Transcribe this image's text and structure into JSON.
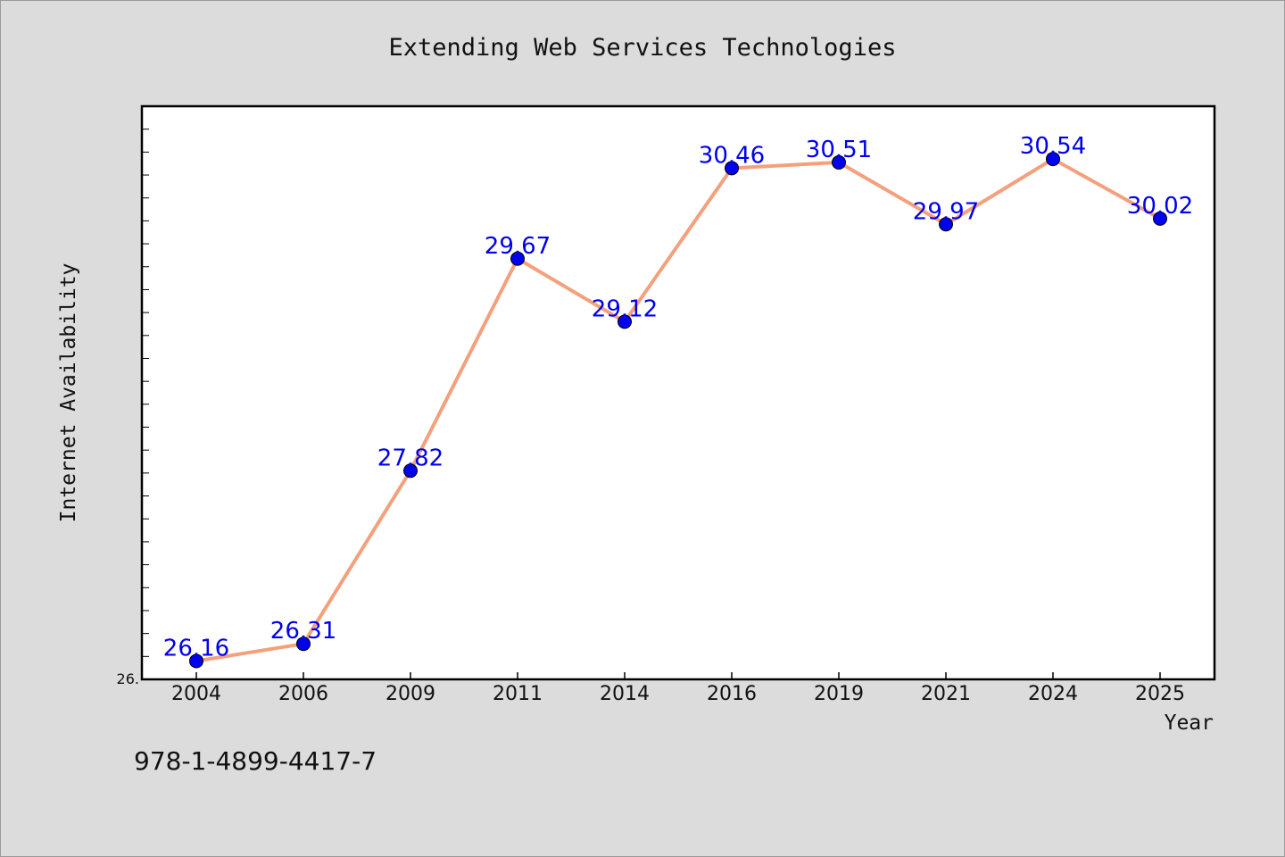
{
  "chart_data": {
    "type": "line",
    "title": "Extending Web Services Technologies",
    "xlabel": "Year",
    "ylabel": "Internet Availability",
    "categories": [
      "2004",
      "2006",
      "2009",
      "2011",
      "2014",
      "2016",
      "2019",
      "2021",
      "2024",
      "2025"
    ],
    "series": [
      {
        "values": [
          26.16,
          26.31,
          27.82,
          29.67,
          29.12,
          30.46,
          30.51,
          29.97,
          30.54,
          30.02
        ]
      }
    ],
    "data_labels": [
      "26.16",
      "26.31",
      "27.82",
      "29.67",
      "29.12",
      "30.46",
      "30.51",
      "29.97",
      "30.54",
      "30.02"
    ],
    "ylim": [
      26.0,
      31.0
    ],
    "y_tick_label": "26.",
    "grid": false,
    "legend": "none",
    "line_color": "#f4a07c",
    "marker_color": "#0000ee",
    "label_color": "#0000ee"
  },
  "footer": {
    "isbn": "978-1-4899-4417-7"
  }
}
